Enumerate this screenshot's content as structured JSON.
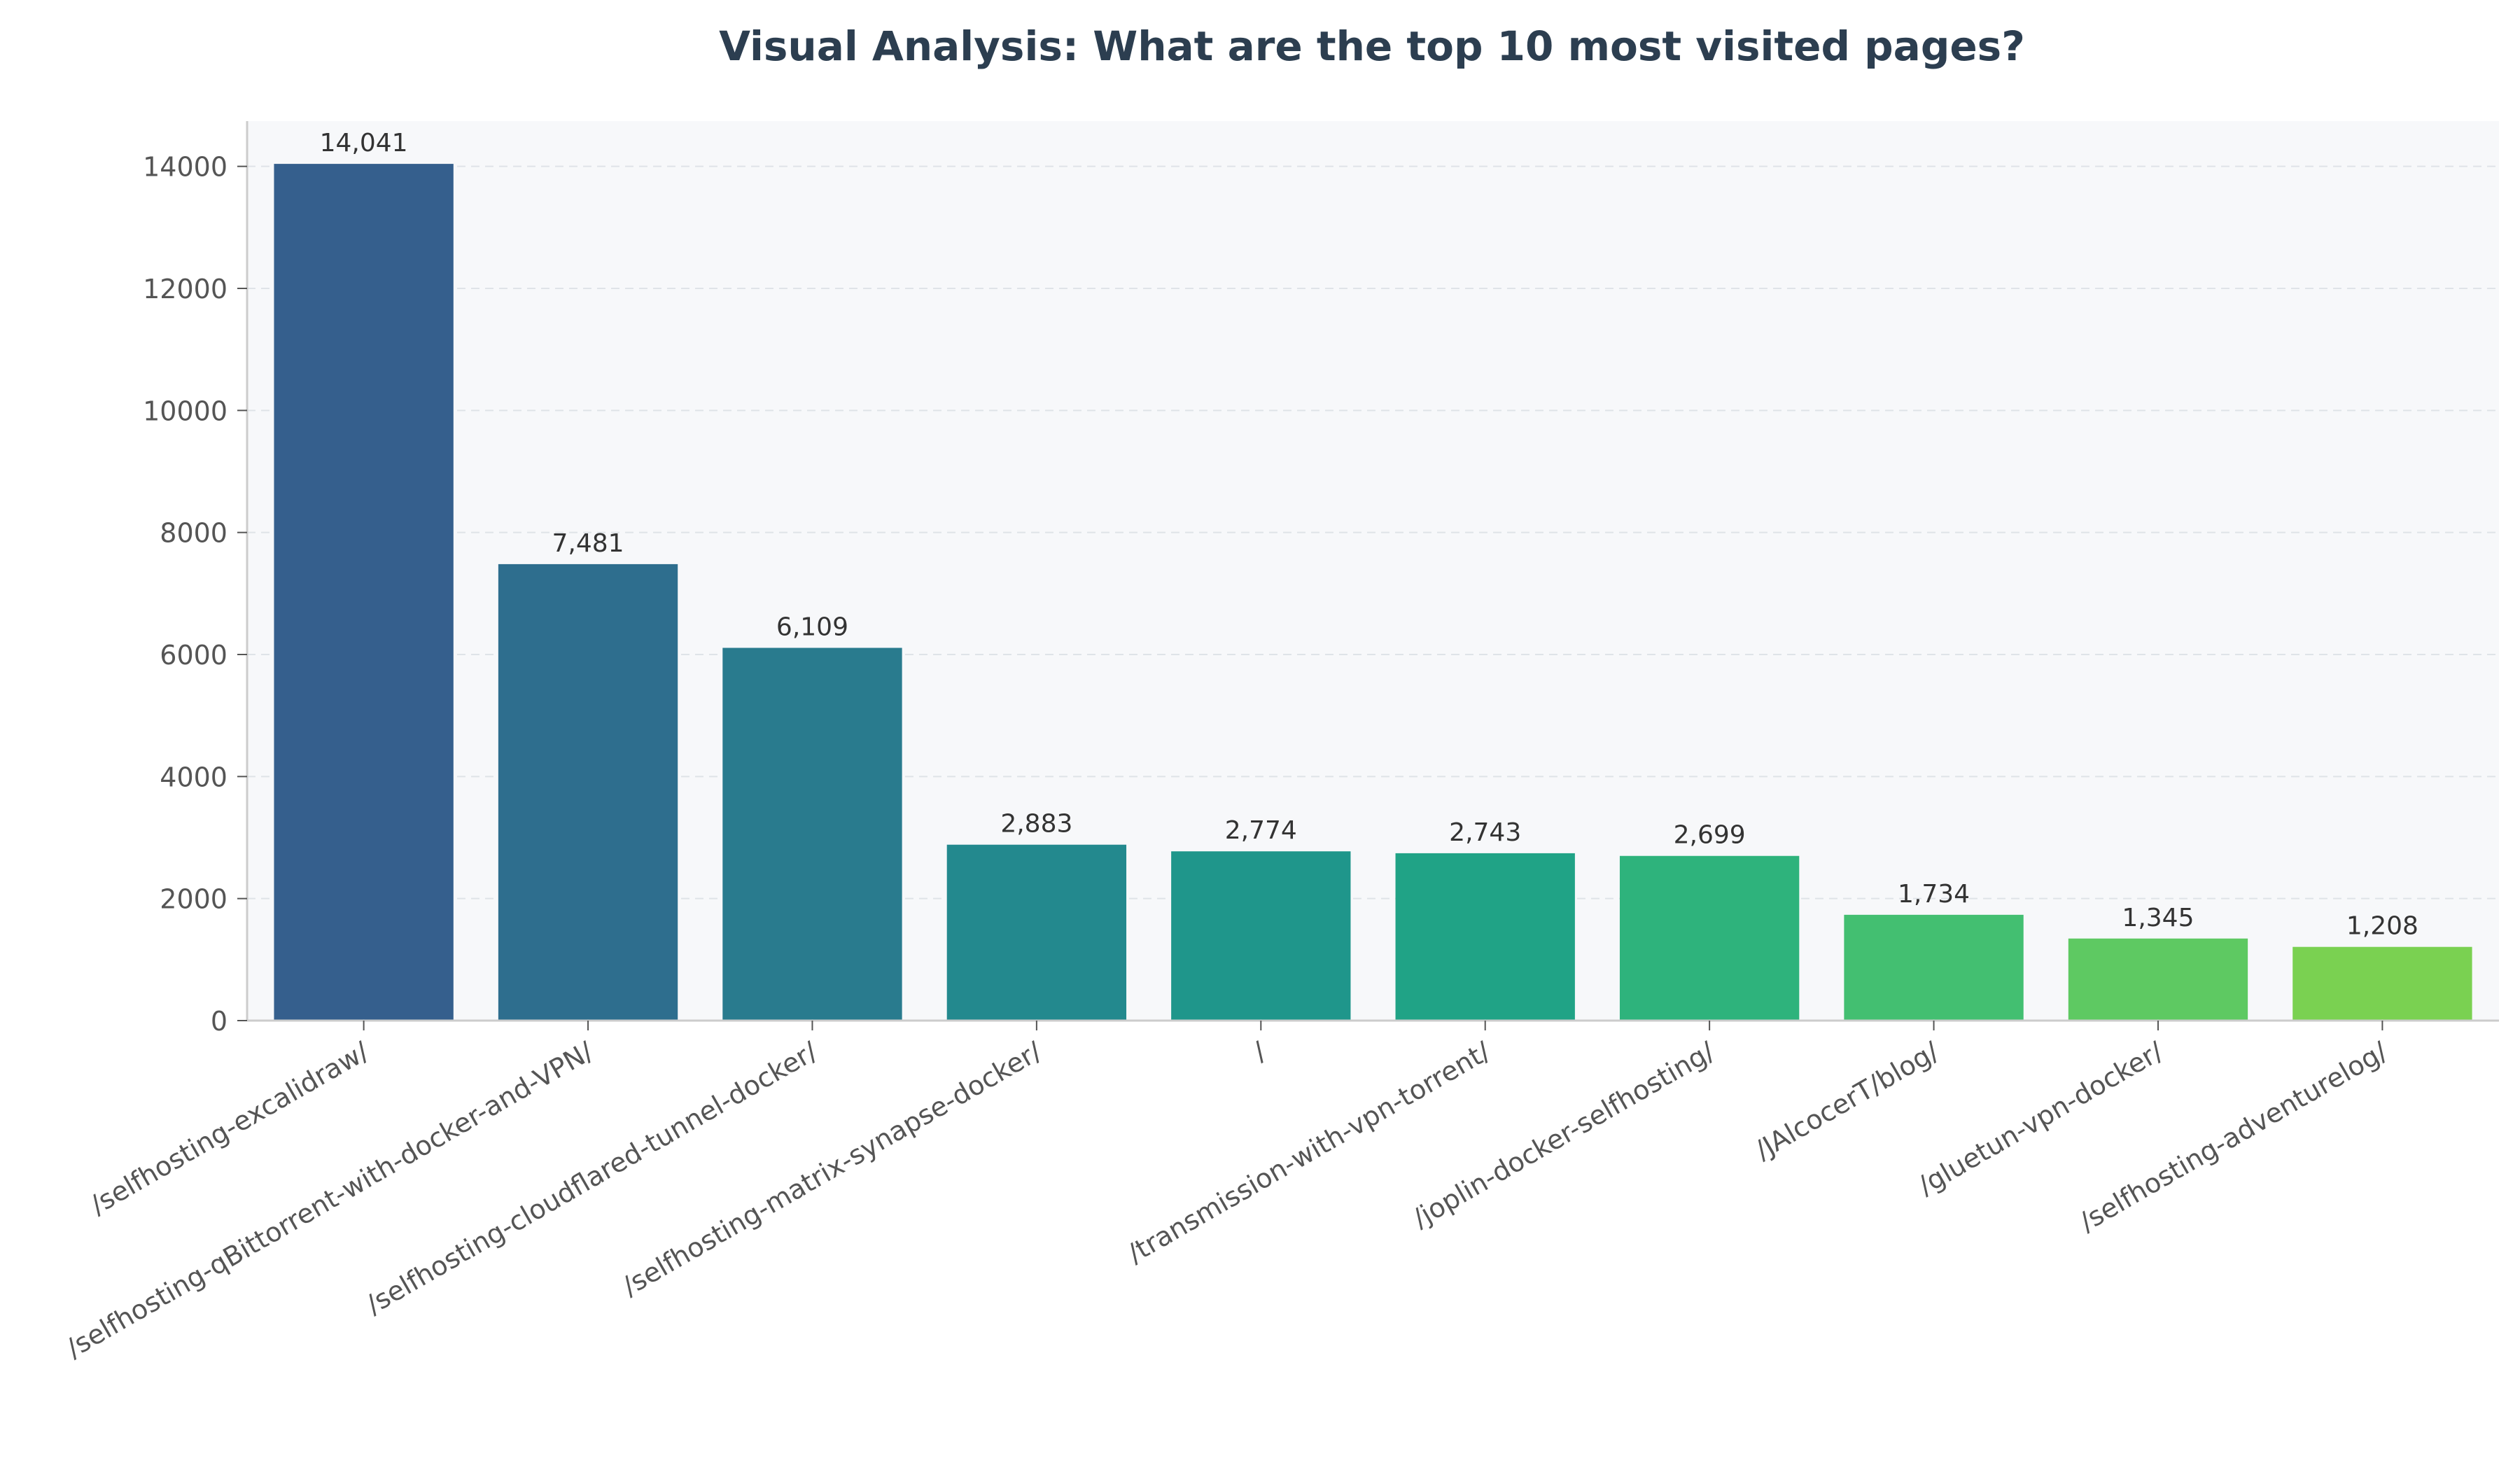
{
  "chart_data": {
    "type": "bar",
    "title": "Visual Analysis: What are the top 10 most visited pages?",
    "xlabel": "",
    "ylabel": "",
    "categories": [
      "/selfhosting-excalidraw/",
      "/selfhosting-qBittorrent-with-docker-and-VPN/",
      "/selfhosting-cloudflared-tunnel-docker/",
      "/selfhosting-matrix-synapse-docker/",
      "/",
      "/transmission-with-vpn-torrent/",
      "/joplin-docker-selfhosting/",
      "/JAlcocerT/blog/",
      "/gluetun-vpn-docker/",
      "/selfhosting-adventurelog/"
    ],
    "values": [
      14041,
      7481,
      6109,
      2883,
      2774,
      2743,
      2699,
      1734,
      1345,
      1208
    ],
    "value_labels": [
      "14,041",
      "7,481",
      "6,109",
      "2,883",
      "2,774",
      "2,743",
      "2,699",
      "1,734",
      "1,345",
      "1,208"
    ],
    "ylim": [
      0,
      14742
    ],
    "yticks": [
      0,
      2000,
      4000,
      6000,
      8000,
      10000,
      12000,
      14000
    ],
    "grid": true,
    "bar_colors": [
      "#355f8d",
      "#2e6e8e",
      "#297b8e",
      "#23898e",
      "#1f968b",
      "#20a386",
      "#2eb37c",
      "#43bf71",
      "#5ec962",
      "#7ad151"
    ],
    "title_color": "#2c3e50",
    "plot_background": "#f7f8fa",
    "text_color": "#555555"
  }
}
